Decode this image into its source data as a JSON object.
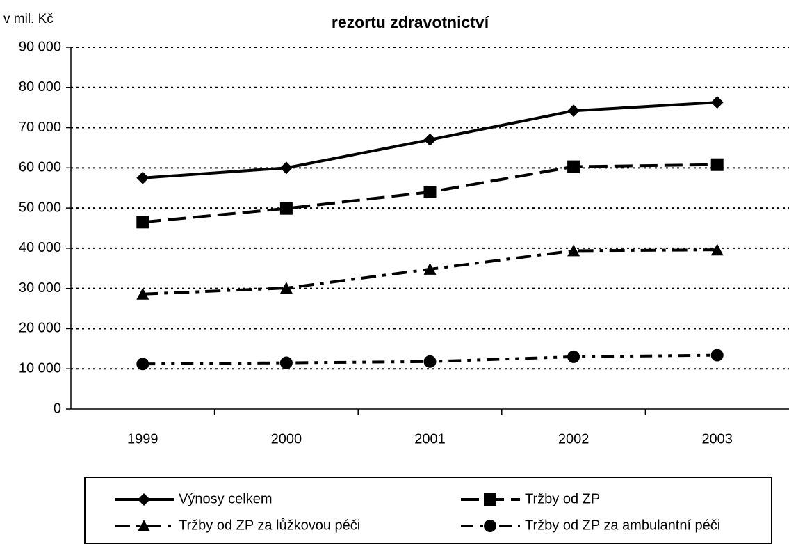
{
  "chart_data": {
    "type": "line",
    "title": "rezortu zdravotnictví",
    "y_label": "v mil. Kč",
    "categories": [
      "1999",
      "2000",
      "2001",
      "2002",
      "2003"
    ],
    "series": [
      {
        "name": "Výnosy celkem",
        "color": "#000000",
        "dash": "solid",
        "marker": "diamond",
        "values": [
          57500,
          60000,
          67000,
          74200,
          76300
        ]
      },
      {
        "name": "Tržby od ZP",
        "color": "#000000",
        "dash": "dashed",
        "marker": "square",
        "values": [
          46500,
          49900,
          54000,
          60300,
          60800
        ]
      },
      {
        "name": "Tržby od ZP za lůžkovou péči",
        "color": "#000000",
        "dash": "dashdot",
        "marker": "triangle",
        "values": [
          28600,
          30100,
          34800,
          39400,
          39600
        ]
      },
      {
        "name": "Tržby od ZP za ambulantní péči",
        "color": "#000000",
        "dash": "dashdotdot",
        "marker": "circle",
        "values": [
          11200,
          11500,
          11800,
          13000,
          13400
        ]
      }
    ],
    "ylim": [
      0,
      90000
    ],
    "yticks": [
      0,
      {
        "value": 10000,
        "label": "10 000"
      },
      {
        "value": 20000,
        "label": "20 000"
      },
      {
        "value": 30000,
        "label": "30 000"
      },
      {
        "value": 40000,
        "label": "40 000"
      },
      {
        "value": 50000,
        "label": "50 000"
      },
      {
        "value": 60000,
        "label": "60 000"
      },
      {
        "value": 70000,
        "label": "70 000"
      },
      {
        "value": 80000,
        "label": "80 000"
      },
      {
        "value": 90000,
        "label": "90 000"
      }
    ],
    "grid": true,
    "legend": "bottom"
  }
}
